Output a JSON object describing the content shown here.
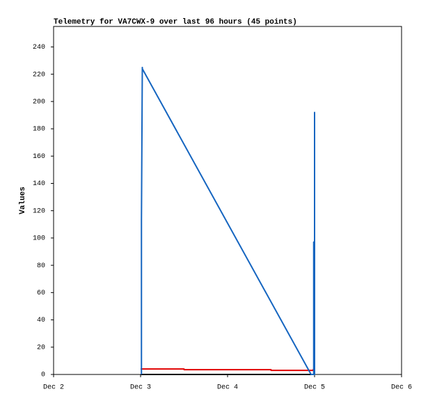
{
  "chart_data": {
    "type": "line",
    "title": "Telemetry for VA7CWX-9 over last 96 hours (45 points)",
    "y_label": "Values",
    "xlim": [
      2,
      6
    ],
    "xticks": [
      {
        "value": 2,
        "label": "Dec 2"
      },
      {
        "value": 3,
        "label": "Dec 3"
      },
      {
        "value": 4,
        "label": "Dec 4"
      },
      {
        "value": 5,
        "label": "Dec 5"
      },
      {
        "value": 6,
        "label": "Dec 6"
      }
    ],
    "ylim": [
      0,
      255
    ],
    "yticks": [
      0,
      20,
      40,
      60,
      80,
      100,
      120,
      140,
      160,
      180,
      200,
      220,
      240
    ],
    "series": [
      {
        "color": "#000000",
        "x": [
          3.0,
          5.0
        ],
        "values": [
          0,
          0
        ]
      },
      {
        "color": "#e00000",
        "x": [
          3.0,
          3.5,
          3.5,
          4.5,
          4.5,
          4.98,
          5.0
        ],
        "values": [
          4,
          4,
          3.5,
          3.5,
          3,
          3,
          5
        ]
      },
      {
        "color": "#1565c0",
        "x": [
          3.01,
          3.01,
          3.02,
          3.02,
          4.96,
          4.99,
          4.99,
          5.0,
          5.0,
          5.0
        ],
        "values": [
          0,
          113,
          225,
          224,
          0,
          0,
          97,
          0,
          192,
          0
        ]
      }
    ]
  }
}
